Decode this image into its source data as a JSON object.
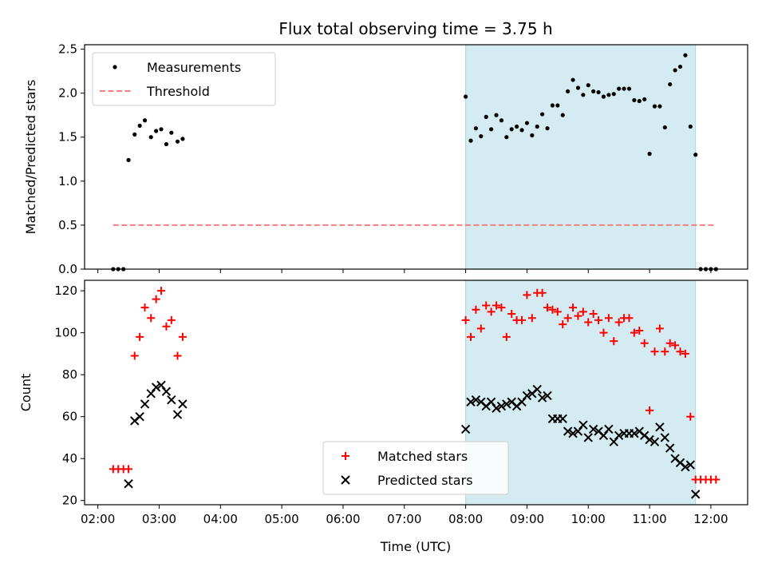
{
  "chart_data": {
    "type": "scatter",
    "title": "Flux total observing time = 3.75 h",
    "xlabel": "Time (UTC)",
    "x_ticks": [
      "02:00",
      "03:00",
      "04:00",
      "05:00",
      "06:00",
      "07:00",
      "08:00",
      "09:00",
      "10:00",
      "11:00",
      "12:00"
    ],
    "xlim": [
      "01:47",
      "12:36"
    ],
    "shaded_interval": [
      "08:00",
      "11:45"
    ],
    "shaded_color": "#d4ebf2",
    "panels": [
      {
        "ylabel": "Matched/Predicted stars",
        "ylim": [
          0,
          2.55
        ],
        "y_ticks": [
          "0.0",
          "0.5",
          "1.0",
          "1.5",
          "2.0",
          "2.5"
        ],
        "legend_position": "upper-left",
        "series": [
          {
            "name": "Measurements",
            "marker": "dot",
            "color": "#000000",
            "points": [
              [
                "02:15",
                0.0
              ],
              [
                "02:20",
                0.0
              ],
              [
                "02:25",
                0.0
              ],
              [
                "02:30",
                1.24
              ],
              [
                "02:36",
                1.53
              ],
              [
                "02:41",
                1.63
              ],
              [
                "02:46",
                1.69
              ],
              [
                "02:52",
                1.5
              ],
              [
                "02:57",
                1.57
              ],
              [
                "03:02",
                1.59
              ],
              [
                "03:07",
                1.42
              ],
              [
                "03:12",
                1.55
              ],
              [
                "03:18",
                1.45
              ],
              [
                "03:23",
                1.48
              ],
              [
                "08:00",
                1.96
              ],
              [
                "08:05",
                1.46
              ],
              [
                "08:10",
                1.6
              ],
              [
                "08:15",
                1.51
              ],
              [
                "08:20",
                1.73
              ],
              [
                "08:25",
                1.59
              ],
              [
                "08:30",
                1.75
              ],
              [
                "08:35",
                1.69
              ],
              [
                "08:40",
                1.5
              ],
              [
                "08:45",
                1.59
              ],
              [
                "08:50",
                1.62
              ],
              [
                "08:55",
                1.58
              ],
              [
                "09:00",
                1.66
              ],
              [
                "09:05",
                1.52
              ],
              [
                "09:10",
                1.62
              ],
              [
                "09:15",
                1.76
              ],
              [
                "09:20",
                1.6
              ],
              [
                "09:25",
                1.86
              ],
              [
                "09:30",
                1.86
              ],
              [
                "09:35",
                1.75
              ],
              [
                "09:40",
                2.02
              ],
              [
                "09:45",
                2.15
              ],
              [
                "09:50",
                2.06
              ],
              [
                "09:55",
                1.98
              ],
              [
                "10:00",
                2.09
              ],
              [
                "10:05",
                2.02
              ],
              [
                "10:10",
                2.01
              ],
              [
                "10:15",
                1.96
              ],
              [
                "10:20",
                1.98
              ],
              [
                "10:25",
                1.99
              ],
              [
                "10:30",
                2.05
              ],
              [
                "10:35",
                2.05
              ],
              [
                "10:40",
                2.05
              ],
              [
                "10:45",
                1.92
              ],
              [
                "10:50",
                1.91
              ],
              [
                "10:55",
                1.93
              ],
              [
                "11:00",
                1.31
              ],
              [
                "11:05",
                1.85
              ],
              [
                "11:10",
                1.85
              ],
              [
                "11:15",
                1.61
              ],
              [
                "11:20",
                2.1
              ],
              [
                "11:25",
                2.26
              ],
              [
                "11:30",
                2.3
              ],
              [
                "11:35",
                2.43
              ],
              [
                "11:40",
                1.62
              ],
              [
                "11:45",
                1.3
              ],
              [
                "11:50",
                0.0
              ],
              [
                "11:55",
                0.0
              ],
              [
                "12:00",
                0.0
              ],
              [
                "12:05",
                0.0
              ]
            ]
          },
          {
            "name": "Threshold",
            "marker": "dashed-line",
            "color": "#f08080",
            "value": 0.5,
            "x_range": [
              "02:15",
              "12:05"
            ]
          }
        ]
      },
      {
        "ylabel": "Count",
        "ylim": [
          18,
          125
        ],
        "y_ticks": [
          "20",
          "40",
          "60",
          "80",
          "100",
          "120"
        ],
        "legend_position": "lower-center",
        "series": [
          {
            "name": "Matched stars",
            "marker": "plus",
            "color": "#ff0000",
            "points": [
              [
                "02:15",
                35
              ],
              [
                "02:20",
                35
              ],
              [
                "02:25",
                35
              ],
              [
                "02:30",
                35
              ],
              [
                "02:36",
                89
              ],
              [
                "02:41",
                98
              ],
              [
                "02:46",
                112
              ],
              [
                "02:52",
                107
              ],
              [
                "02:57",
                116
              ],
              [
                "03:02",
                120
              ],
              [
                "03:07",
                103
              ],
              [
                "03:12",
                106
              ],
              [
                "03:18",
                89
              ],
              [
                "03:23",
                98
              ],
              [
                "08:00",
                106
              ],
              [
                "08:05",
                98
              ],
              [
                "08:10",
                111
              ],
              [
                "08:15",
                102
              ],
              [
                "08:20",
                113
              ],
              [
                "08:25",
                110
              ],
              [
                "08:30",
                113
              ],
              [
                "08:35",
                112
              ],
              [
                "08:40",
                98
              ],
              [
                "08:45",
                109
              ],
              [
                "08:50",
                106
              ],
              [
                "08:55",
                106
              ],
              [
                "09:00",
                118
              ],
              [
                "09:05",
                107
              ],
              [
                "09:10",
                119
              ],
              [
                "09:15",
                119
              ],
              [
                "09:20",
                112
              ],
              [
                "09:25",
                111
              ],
              [
                "09:30",
                110
              ],
              [
                "09:35",
                104
              ],
              [
                "09:40",
                107
              ],
              [
                "09:45",
                112
              ],
              [
                "09:50",
                108
              ],
              [
                "09:55",
                110
              ],
              [
                "10:00",
                105
              ],
              [
                "10:05",
                109
              ],
              [
                "10:10",
                106
              ],
              [
                "10:15",
                100
              ],
              [
                "10:20",
                107
              ],
              [
                "10:25",
                96
              ],
              [
                "10:30",
                105
              ],
              [
                "10:35",
                107
              ],
              [
                "10:40",
                107
              ],
              [
                "10:45",
                100
              ],
              [
                "10:50",
                101
              ],
              [
                "10:55",
                95
              ],
              [
                "11:00",
                63
              ],
              [
                "11:05",
                91
              ],
              [
                "11:10",
                102
              ],
              [
                "11:15",
                91
              ],
              [
                "11:20",
                95
              ],
              [
                "11:25",
                94
              ],
              [
                "11:30",
                91
              ],
              [
                "11:35",
                90
              ],
              [
                "11:40",
                60
              ],
              [
                "11:45",
                30
              ],
              [
                "11:50",
                30
              ],
              [
                "11:55",
                30
              ],
              [
                "12:00",
                30
              ],
              [
                "12:05",
                30
              ]
            ]
          },
          {
            "name": "Predicted stars",
            "marker": "x",
            "color": "#000000",
            "points": [
              [
                "02:30",
                28
              ],
              [
                "02:36",
                58
              ],
              [
                "02:41",
                60
              ],
              [
                "02:46",
                66
              ],
              [
                "02:52",
                71
              ],
              [
                "02:57",
                74
              ],
              [
                "03:02",
                75
              ],
              [
                "03:07",
                72
              ],
              [
                "03:12",
                68
              ],
              [
                "03:18",
                61
              ],
              [
                "03:23",
                66
              ],
              [
                "08:00",
                54
              ],
              [
                "08:05",
                67
              ],
              [
                "08:10",
                68
              ],
              [
                "08:15",
                67
              ],
              [
                "08:20",
                65
              ],
              [
                "08:25",
                67
              ],
              [
                "08:30",
                64
              ],
              [
                "08:35",
                65
              ],
              [
                "08:40",
                66
              ],
              [
                "08:45",
                67
              ],
              [
                "08:50",
                65
              ],
              [
                "08:55",
                67
              ],
              [
                "09:00",
                70
              ],
              [
                "09:05",
                71
              ],
              [
                "09:10",
                73
              ],
              [
                "09:15",
                69
              ],
              [
                "09:20",
                70
              ],
              [
                "09:25",
                59
              ],
              [
                "09:30",
                59
              ],
              [
                "09:35",
                59
              ],
              [
                "09:40",
                53
              ],
              [
                "09:45",
                52
              ],
              [
                "09:50",
                53
              ],
              [
                "09:55",
                56
              ],
              [
                "10:00",
                50
              ],
              [
                "10:05",
                54
              ],
              [
                "10:10",
                53
              ],
              [
                "10:15",
                51
              ],
              [
                "10:20",
                54
              ],
              [
                "10:25",
                48
              ],
              [
                "10:30",
                51
              ],
              [
                "10:35",
                52
              ],
              [
                "10:40",
                52
              ],
              [
                "10:45",
                52
              ],
              [
                "10:50",
                53
              ],
              [
                "10:55",
                51
              ],
              [
                "11:00",
                49
              ],
              [
                "11:05",
                48
              ],
              [
                "11:10",
                55
              ],
              [
                "11:15",
                50
              ],
              [
                "11:20",
                45
              ],
              [
                "11:25",
                40
              ],
              [
                "11:30",
                38
              ],
              [
                "11:35",
                36
              ],
              [
                "11:40",
                37
              ],
              [
                "11:45",
                23
              ]
            ]
          }
        ]
      }
    ]
  }
}
